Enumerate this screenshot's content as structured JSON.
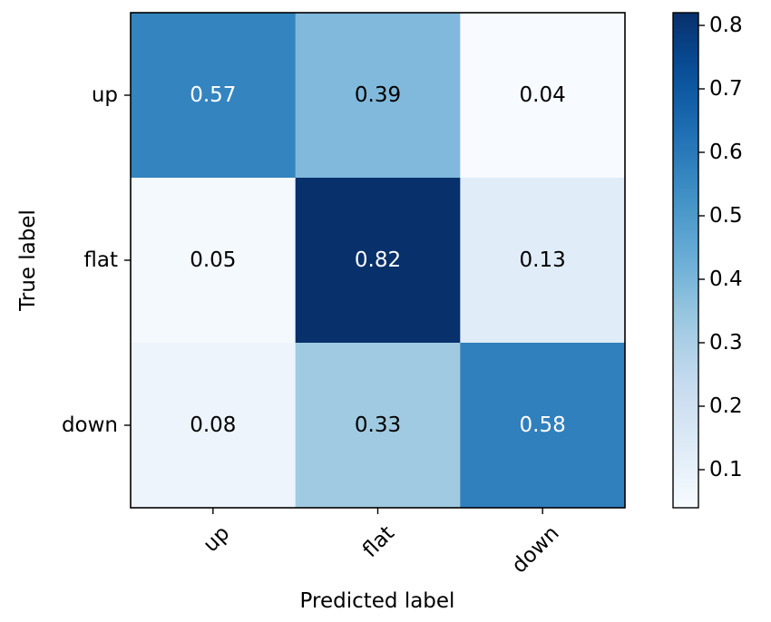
{
  "chart_data": {
    "type": "heatmap",
    "title": "",
    "xlabel": "Predicted label",
    "ylabel": "True label",
    "x_categories": [
      "up",
      "flat",
      "down"
    ],
    "y_categories": [
      "up",
      "flat",
      "down"
    ],
    "values": [
      [
        0.57,
        0.39,
        0.04
      ],
      [
        0.05,
        0.82,
        0.13
      ],
      [
        0.08,
        0.33,
        0.58
      ]
    ],
    "cell_labels": [
      [
        "0.57",
        "0.39",
        "0.04"
      ],
      [
        "0.05",
        "0.82",
        "0.13"
      ],
      [
        "0.08",
        "0.33",
        "0.58"
      ]
    ],
    "colormap": "Blues",
    "vmin": 0.04,
    "vmax": 0.82,
    "text_threshold": 0.43,
    "text_color_dark": "#000000",
    "text_color_light": "#ffffff",
    "x_tick_rotation_deg": 45,
    "colorbar": {
      "ticks": [
        0.1,
        0.2,
        0.3,
        0.4,
        0.5,
        0.6,
        0.7,
        0.8
      ],
      "tick_labels": [
        "0.1",
        "0.2",
        "0.3",
        "0.4",
        "0.5",
        "0.6",
        "0.7",
        "0.8"
      ]
    },
    "grid": false
  }
}
